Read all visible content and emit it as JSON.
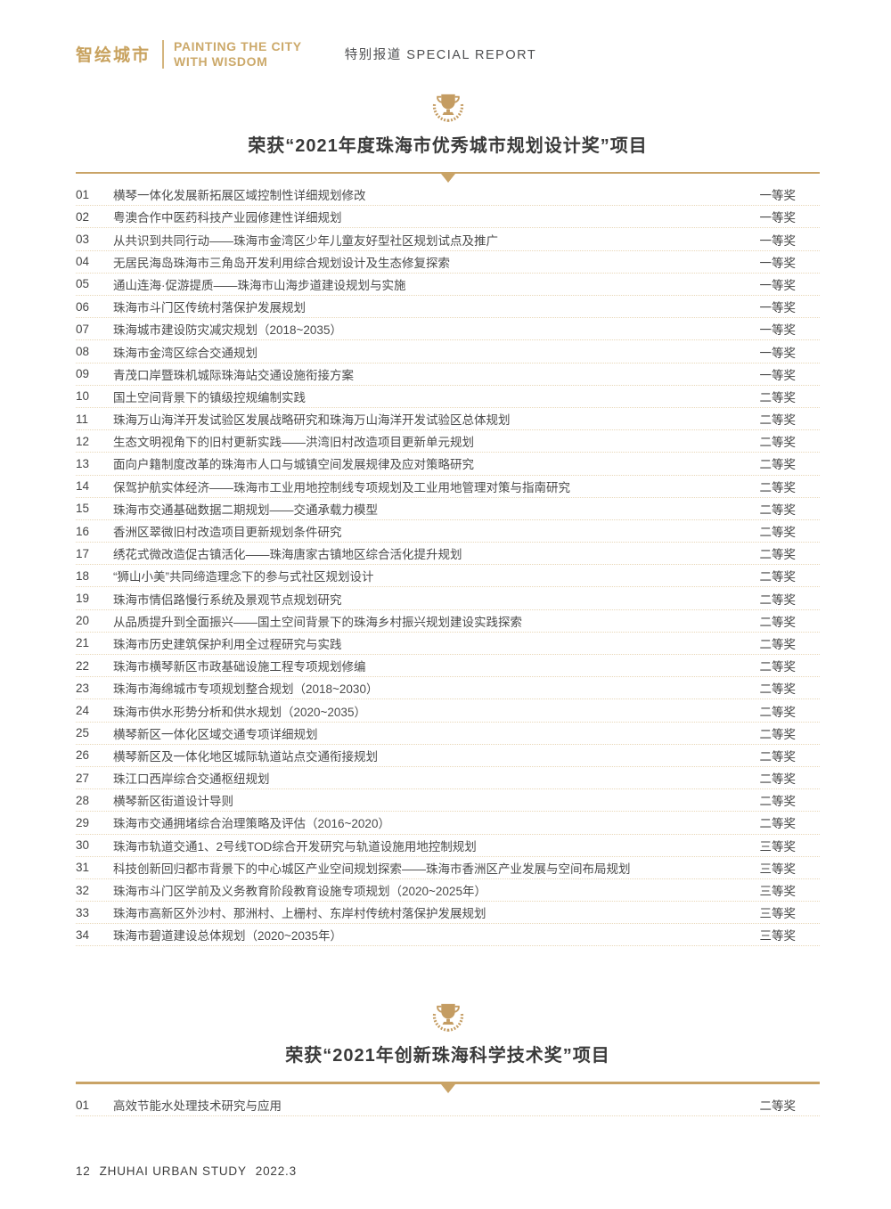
{
  "colors": {
    "accent_gold": "#C8A25E",
    "divider_gold": "#C9A366",
    "dotted_line": "#E8D7B8",
    "title_text": "#3A3A3A",
    "body_text": "#4B4B4B"
  },
  "header": {
    "logo_cn": "智绘城市",
    "logo_en_line1": "PAINTING THE CITY",
    "logo_en_line2": "WITH WISDOM",
    "report_label": "特别报道 SPECIAL REPORT"
  },
  "sections": [
    {
      "title": "荣获“2021年度珠海市优秀城市规划设计奖”项目",
      "items": [
        {
          "no": "01",
          "title": "横琴一体化发展新拓展区域控制性详细规划修改",
          "award": "一等奖"
        },
        {
          "no": "02",
          "title": "粤澳合作中医药科技产业园修建性详细规划",
          "award": "一等奖"
        },
        {
          "no": "03",
          "title": "从共识到共同行动——珠海市金湾区少年儿童友好型社区规划试点及推广",
          "award": "一等奖"
        },
        {
          "no": "04",
          "title": "无居民海岛珠海市三角岛开发利用综合规划设计及生态修复探索",
          "award": "一等奖"
        },
        {
          "no": "05",
          "title": "通山连海·促游提质——珠海市山海步道建设规划与实施",
          "award": "一等奖"
        },
        {
          "no": "06",
          "title": "珠海市斗门区传统村落保护发展规划",
          "award": "一等奖"
        },
        {
          "no": "07",
          "title": "珠海城市建设防灾减灾规划（2018~2035）",
          "award": "一等奖"
        },
        {
          "no": "08",
          "title": "珠海市金湾区综合交通规划",
          "award": "一等奖"
        },
        {
          "no": "09",
          "title": "青茂口岸暨珠机城际珠海站交通设施衔接方案",
          "award": "一等奖"
        },
        {
          "no": "10",
          "title": "国土空间背景下的镇级控规编制实践",
          "award": "二等奖"
        },
        {
          "no": "11",
          "title": "珠海万山海洋开发试验区发展战略研究和珠海万山海洋开发试验区总体规划",
          "award": "二等奖"
        },
        {
          "no": "12",
          "title": "生态文明视角下的旧村更新实践——洪湾旧村改造项目更新单元规划",
          "award": "二等奖"
        },
        {
          "no": "13",
          "title": "面向户籍制度改革的珠海市人口与城镇空间发展规律及应对策略研究",
          "award": "二等奖"
        },
        {
          "no": "14",
          "title": "保驾护航实体经济——珠海市工业用地控制线专项规划及工业用地管理对策与指南研究",
          "award": "二等奖"
        },
        {
          "no": "15",
          "title": "珠海市交通基础数据二期规划——交通承载力模型",
          "award": "二等奖"
        },
        {
          "no": "16",
          "title": "香洲区翠微旧村改造项目更新规划条件研究",
          "award": "二等奖"
        },
        {
          "no": "17",
          "title": "绣花式微改造促古镇活化——珠海唐家古镇地区综合活化提升规划",
          "award": "二等奖"
        },
        {
          "no": "18",
          "title": "“狮山小美”共同缔造理念下的参与式社区规划设计",
          "award": "二等奖"
        },
        {
          "no": "19",
          "title": "珠海市情侣路慢行系统及景观节点规划研究",
          "award": "二等奖"
        },
        {
          "no": "20",
          "title": "从品质提升到全面振兴——国土空间背景下的珠海乡村振兴规划建设实践探索",
          "award": "二等奖"
        },
        {
          "no": "21",
          "title": "珠海市历史建筑保护利用全过程研究与实践",
          "award": "二等奖"
        },
        {
          "no": "22",
          "title": "珠海市横琴新区市政基础设施工程专项规划修编",
          "award": "二等奖"
        },
        {
          "no": "23",
          "title": "珠海市海绵城市专项规划整合规划（2018~2030）",
          "award": "二等奖"
        },
        {
          "no": "24",
          "title": "珠海市供水形势分析和供水规划（2020~2035）",
          "award": "二等奖"
        },
        {
          "no": "25",
          "title": "横琴新区一体化区域交通专项详细规划",
          "award": "二等奖"
        },
        {
          "no": "26",
          "title": "横琴新区及一体化地区城际轨道站点交通衔接规划",
          "award": "二等奖"
        },
        {
          "no": "27",
          "title": "珠江口西岸综合交通枢纽规划",
          "award": "二等奖"
        },
        {
          "no": "28",
          "title": "横琴新区街道设计导则",
          "award": "二等奖"
        },
        {
          "no": "29",
          "title": "珠海市交通拥堵综合治理策略及评估（2016~2020）",
          "award": "二等奖"
        },
        {
          "no": "30",
          "title": "珠海市轨道交通1、2号线TOD综合开发研究与轨道设施用地控制规划",
          "award": "三等奖"
        },
        {
          "no": "31",
          "title": "科技创新回归都市背景下的中心城区产业空间规划探索——珠海市香洲区产业发展与空间布局规划",
          "award": "三等奖"
        },
        {
          "no": "32",
          "title": "珠海市斗门区学前及义务教育阶段教育设施专项规划（2020~2025年）",
          "award": "三等奖"
        },
        {
          "no": "33",
          "title": "珠海市高新区外沙村、那洲村、上栅村、东岸村传统村落保护发展规划",
          "award": "三等奖"
        },
        {
          "no": "34",
          "title": "珠海市碧道建设总体规划（2020~2035年）",
          "award": "三等奖"
        }
      ]
    },
    {
      "title": "荣获“2021年创新珠海科学技术奖”项目",
      "items": [
        {
          "no": "01",
          "title": "高效节能水处理技术研究与应用",
          "award": "二等奖"
        }
      ]
    }
  ],
  "footer": {
    "page_number": "12",
    "journal": "ZHUHAI URBAN STUDY",
    "issue": "2022.3"
  }
}
